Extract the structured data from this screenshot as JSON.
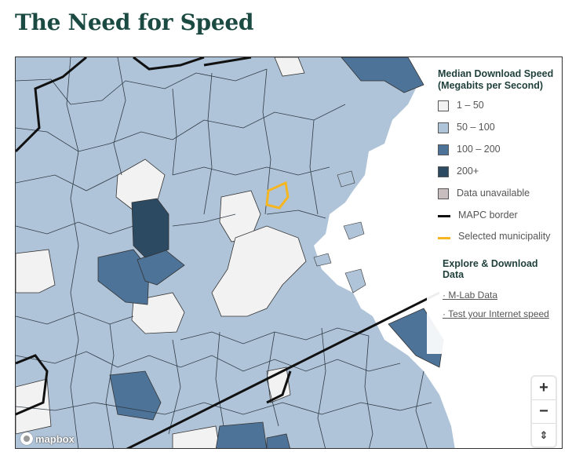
{
  "header": {
    "title": "The Need for Speed"
  },
  "legend": {
    "title": "Median Download Speed (Megabits per Second)",
    "items": [
      {
        "label": "1 – 50",
        "color": "#f2f2f2"
      },
      {
        "label": "50 – 100",
        "color": "#b0c4d9"
      },
      {
        "label": "100 – 200",
        "color": "#4e7398"
      },
      {
        "label": "200+",
        "color": "#2d4a63"
      },
      {
        "label": "Data unavailable",
        "color": "#c8bec0"
      }
    ],
    "border_label": "MAPC border",
    "border_color": "#111111",
    "selected_label": "Selected municipality",
    "selected_color": "#f5b622"
  },
  "explore": {
    "title": "Explore & Download Data",
    "links": [
      "· M-Lab Data",
      "· Test your Internet speed"
    ]
  },
  "map": {
    "attribution": "mapbox",
    "controls": {
      "zoom_in": "+",
      "zoom_out": "−",
      "compass": "⇕"
    }
  }
}
